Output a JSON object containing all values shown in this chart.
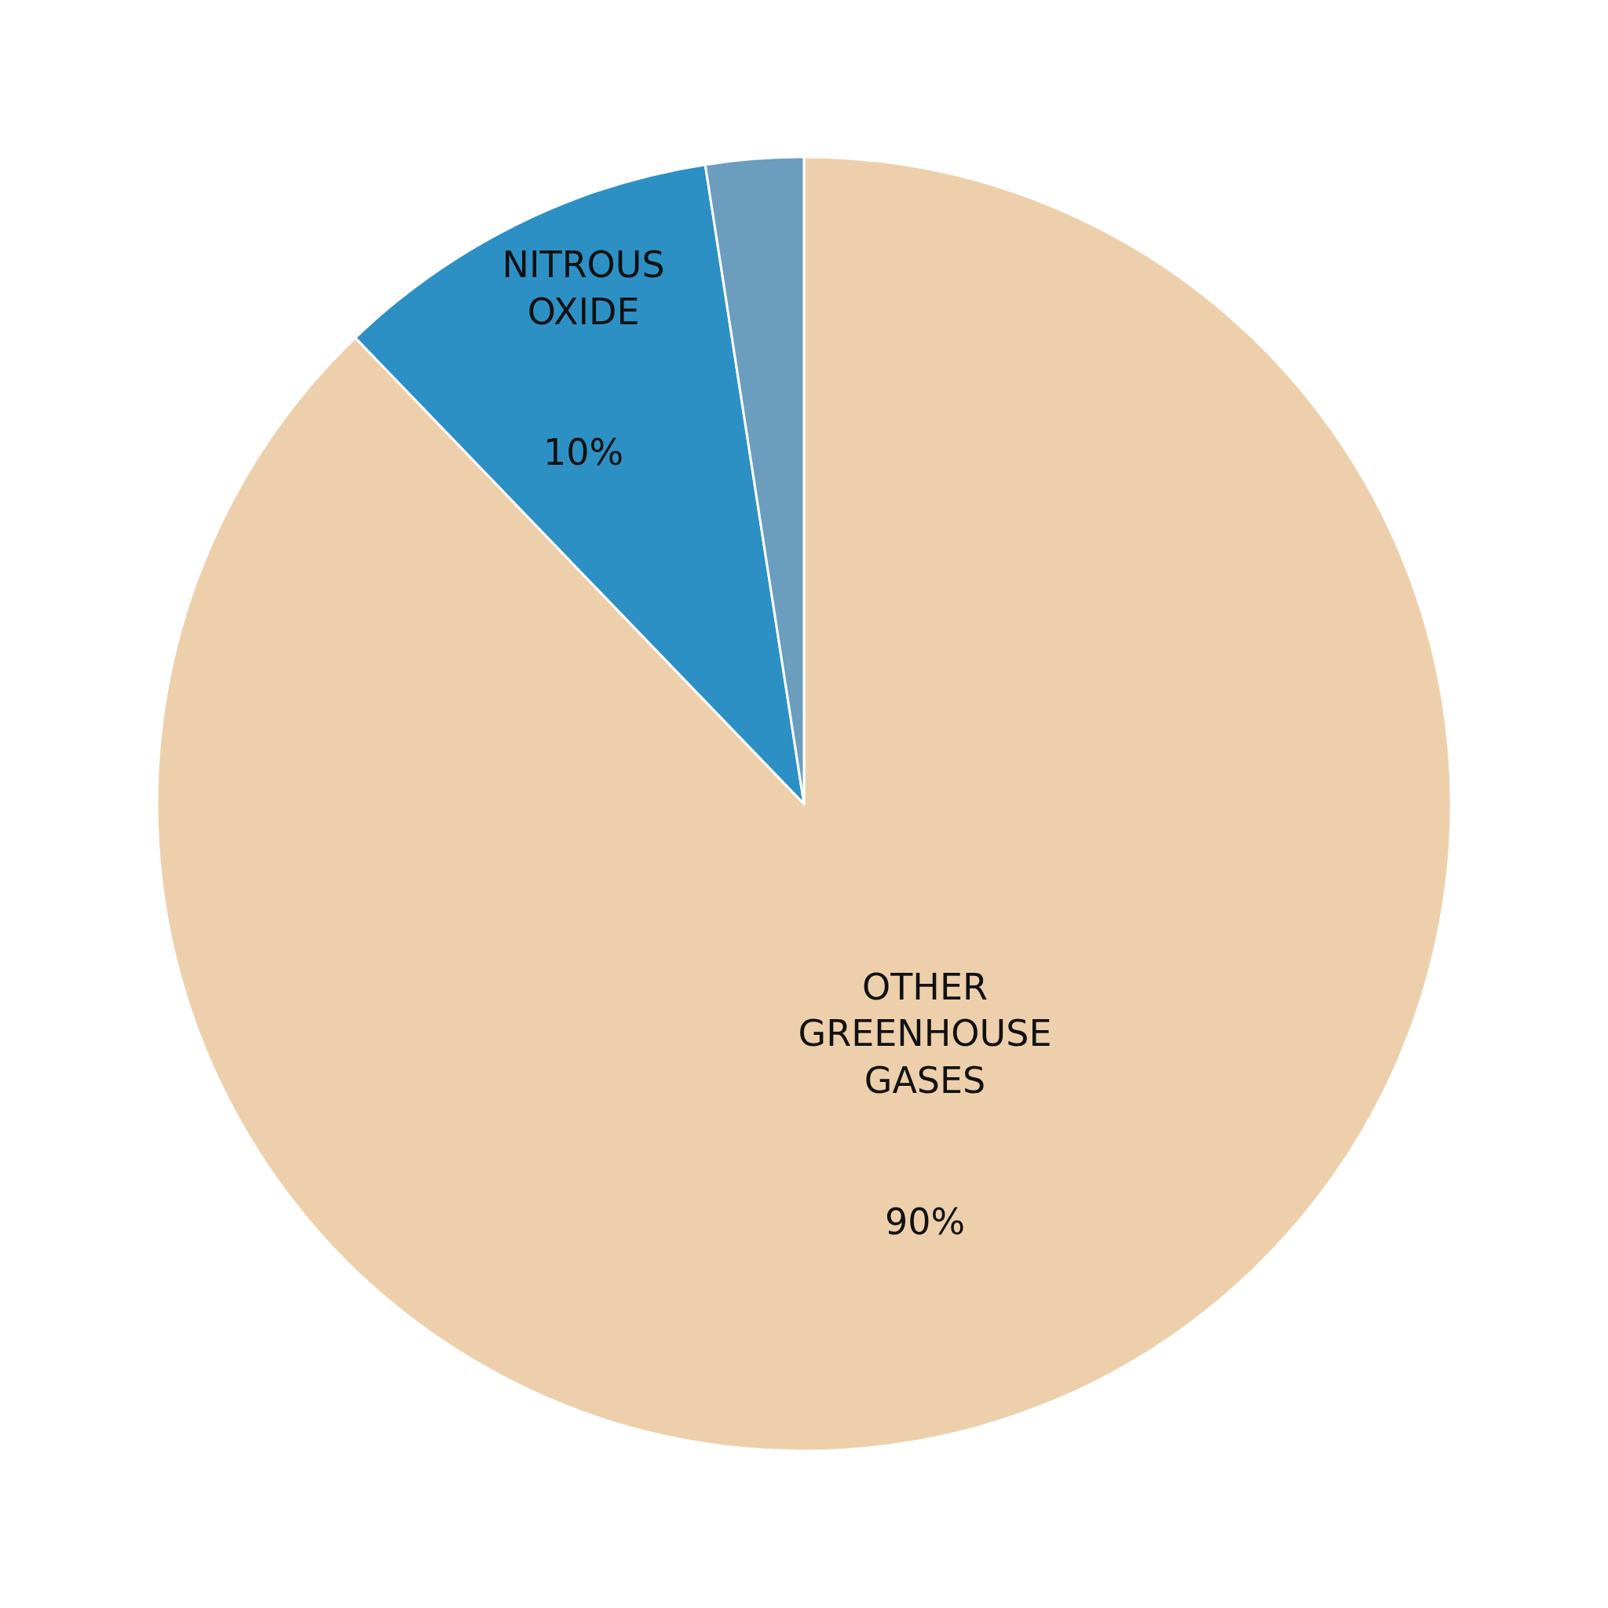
{
  "chart_data": {
    "type": "pie",
    "categories": [
      "OTHER GREENHOUSE GASES",
      "NITROUS OXIDE",
      null
    ],
    "values": [
      90,
      10,
      2.5
    ],
    "value_labels": [
      "90%",
      "10%",
      null
    ],
    "colors": [
      "#edd0ab",
      "#2d90c4",
      "#6b9dbf"
    ],
    "legend": false
  }
}
